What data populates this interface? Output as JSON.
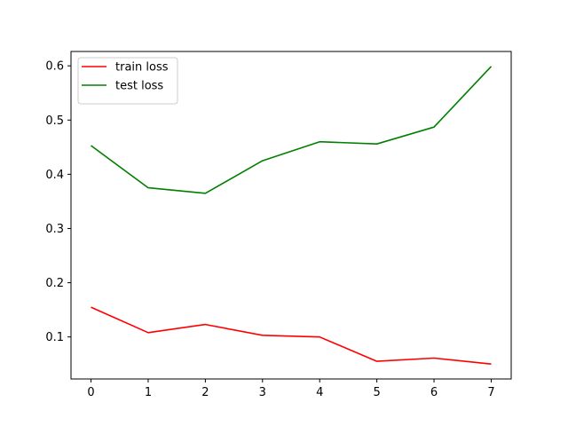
{
  "chart_data": {
    "type": "line",
    "x": [
      0,
      1,
      2,
      3,
      4,
      5,
      6,
      7
    ],
    "series": [
      {
        "name": "train loss",
        "color": "#ff0000",
        "values": [
          0.155,
          0.108,
          0.123,
          0.103,
          0.1,
          0.055,
          0.061,
          0.05
        ]
      },
      {
        "name": "test loss",
        "color": "#008000",
        "values": [
          0.453,
          0.375,
          0.365,
          0.425,
          0.46,
          0.456,
          0.487,
          0.599
        ]
      }
    ],
    "xlim": [
      -0.35,
      7.35
    ],
    "ylim": [
      0.0225,
      0.6265
    ],
    "xticks": [
      "0",
      "1",
      "2",
      "3",
      "4",
      "5",
      "6",
      "7"
    ],
    "yticks": [
      "0.1",
      "0.2",
      "0.3",
      "0.4",
      "0.5",
      "0.6"
    ],
    "title": "",
    "xlabel": "",
    "ylabel": "",
    "grid": false,
    "legend_position": "top-left"
  }
}
